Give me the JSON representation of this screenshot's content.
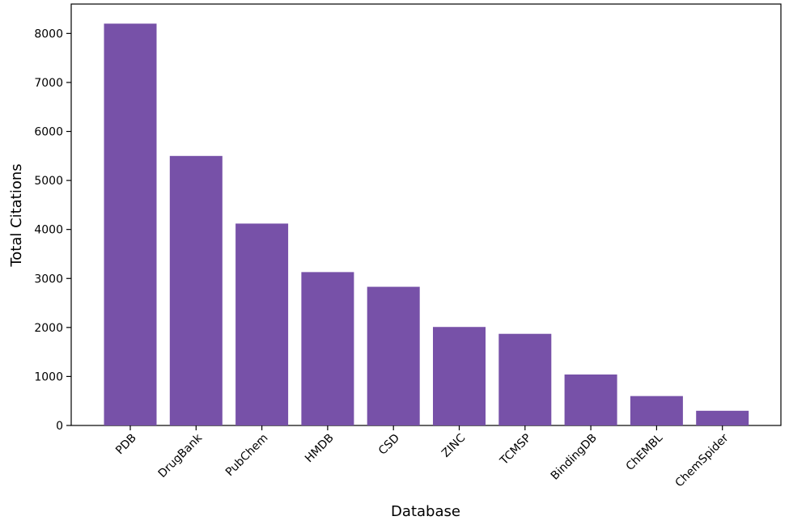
{
  "chart_data": {
    "type": "bar",
    "title": "",
    "xlabel": "Database",
    "ylabel": "Total Citations",
    "categories": [
      "PDB",
      "DrugBank",
      "PubChem",
      "HMDB",
      "CSD",
      "ZINC",
      "TCMSP",
      "BindingDB",
      "ChEMBL",
      "ChemSpider"
    ],
    "values": [
      8200,
      5500,
      4120,
      3130,
      2830,
      2010,
      1870,
      1040,
      600,
      300
    ],
    "ylim": [
      0,
      8600
    ],
    "yticks": [
      0,
      1000,
      2000,
      3000,
      4000,
      5000,
      6000,
      7000,
      8000
    ],
    "bar_color": "#7751a8",
    "grid": false,
    "legend": "none"
  }
}
